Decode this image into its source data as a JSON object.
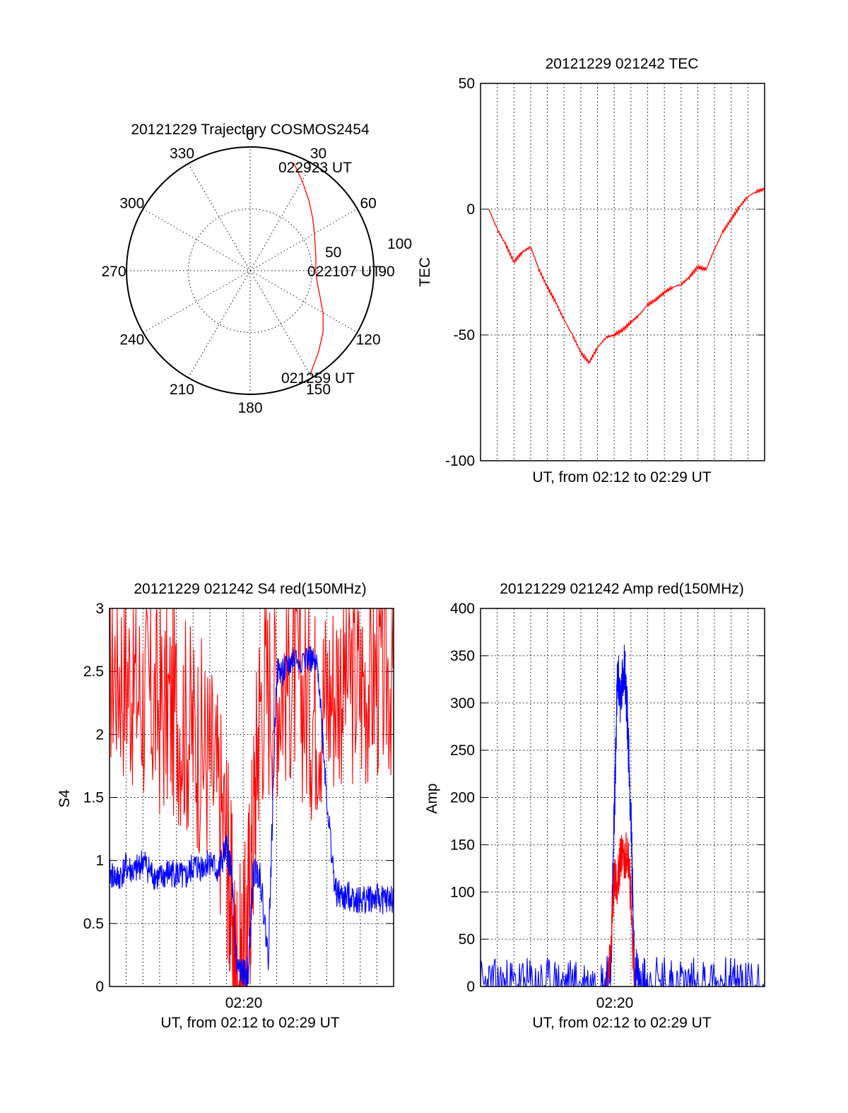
{
  "chart_data": [
    {
      "type": "polar",
      "title": "20121229 Trajectory COSMOS2454",
      "angle_labels": [
        "0",
        "30",
        "60",
        "90",
        "120",
        "150",
        "180",
        "210",
        "240",
        "270",
        "300",
        "330"
      ],
      "radius_labels": [
        "50",
        "100"
      ],
      "rlim": [
        0,
        100
      ],
      "start_label": "021259 UT",
      "mid_label": "022107 UT",
      "end_label": "022923 UT",
      "track": [
        {
          "az": 150.0,
          "r": 97
        },
        {
          "az": 140.0,
          "r": 86
        },
        {
          "az": 130.0,
          "r": 77
        },
        {
          "az": 120.0,
          "r": 68
        },
        {
          "az": 110.0,
          "r": 60
        },
        {
          "az": 100.0,
          "r": 55
        },
        {
          "az": 90.0,
          "r": 53
        },
        {
          "az": 80.0,
          "r": 54
        },
        {
          "az": 70.0,
          "r": 56
        },
        {
          "az": 60.0,
          "r": 60
        },
        {
          "az": 50.0,
          "r": 66
        },
        {
          "az": 40.0,
          "r": 74
        },
        {
          "az": 30.0,
          "r": 84
        },
        {
          "az": 22.0,
          "r": 94
        }
      ]
    },
    {
      "type": "line",
      "title": "20121229 021242 TEC",
      "xlabel": "UT, from 02:12 to 02:29 UT",
      "ylabel": "TEC",
      "xlim": [
        0,
        17
      ],
      "ylim": [
        -100,
        50
      ],
      "yticks": [
        "50",
        "0",
        "-50",
        "-100"
      ],
      "grid": true,
      "series": [
        {
          "color": "#ff0000",
          "x": [
            0.5,
            1,
            1.5,
            2,
            2.5,
            3,
            3.5,
            4,
            4.5,
            5,
            5.5,
            6,
            6.5,
            7,
            7.5,
            8,
            8.5,
            9,
            9.5,
            10,
            10.5,
            11,
            11.5,
            12,
            12.5,
            13,
            13.5,
            14,
            14.5,
            15,
            15.5,
            16,
            16.5,
            17
          ],
          "y": [
            0,
            -8,
            -14,
            -21,
            -17,
            -15,
            -24,
            -31,
            -37,
            -44,
            -50,
            -57,
            -61,
            -55,
            -51,
            -50,
            -48,
            -45,
            -42,
            -38,
            -36,
            -33,
            -31,
            -30,
            -27,
            -23,
            -24,
            -16,
            -9,
            -4,
            1,
            5,
            7,
            8
          ]
        }
      ]
    },
    {
      "type": "line",
      "title": "20121229 021242 S4 red(150MHz)",
      "xlabel": "UT, from 02:12 to 02:29 UT",
      "ylabel": "S4",
      "xtick_label": "02:20",
      "xlim": [
        0,
        17
      ],
      "ylim": [
        0,
        3
      ],
      "yticks": [
        "3",
        "2.5",
        "2",
        "1.5",
        "1",
        "0.5",
        "0"
      ],
      "grid": true,
      "series": [
        {
          "color": "#ff0000",
          "x": [
            0,
            1,
            2,
            3,
            4,
            5,
            6,
            7,
            7.5,
            8,
            8.5,
            9,
            10,
            11,
            12,
            13,
            14,
            15,
            16,
            17
          ],
          "y": [
            2.6,
            2.5,
            2.3,
            2.2,
            2.2,
            2.0,
            1.8,
            1.2,
            0.15,
            0.1,
            1.0,
            2.3,
            2.4,
            2.5,
            2.2,
            2.3,
            2.5,
            2.4,
            2.5,
            2.5
          ]
        },
        {
          "color": "#0000ff",
          "x": [
            0,
            0.5,
            1,
            1.5,
            2,
            2.5,
            3,
            3.5,
            4,
            4.5,
            5,
            5.5,
            6,
            6.5,
            7,
            7.3,
            7.6,
            8,
            8.3,
            8.6,
            9,
            9.5,
            10,
            10.5,
            11,
            12,
            12.5,
            13,
            13.5,
            14,
            14.5,
            15,
            15.5,
            16,
            16.5,
            17
          ],
          "y": [
            0.9,
            0.85,
            0.95,
            0.9,
            1.0,
            0.9,
            0.85,
            0.9,
            0.9,
            0.85,
            0.95,
            0.95,
            1.0,
            0.9,
            1.1,
            0.9,
            0.15,
            0.1,
            0.12,
            0.9,
            0.9,
            0.22,
            2.5,
            2.5,
            2.6,
            2.6,
            2.5,
            1.5,
            0.75,
            0.7,
            0.72,
            0.68,
            0.7,
            0.7,
            0.68,
            0.7
          ]
        }
      ]
    },
    {
      "type": "line",
      "title": "20121229 021242 Amp red(150MHz)",
      "xlabel": "UT, from 02:12 to 02:29 UT",
      "ylabel": "Amp",
      "xtick_label": "02:20",
      "xlim": [
        0,
        17
      ],
      "ylim": [
        0,
        400
      ],
      "yticks": [
        "400",
        "350",
        "300",
        "250",
        "200",
        "150",
        "100",
        "50",
        "0"
      ],
      "grid": true,
      "series": [
        {
          "color": "#0000ff",
          "x": [
            0,
            1,
            2,
            3,
            4,
            5,
            6,
            7,
            7.5,
            7.8,
            8.0,
            8.2,
            8.4,
            8.6,
            8.8,
            9.0,
            9.2,
            9.5,
            10,
            11,
            12,
            13,
            14,
            15,
            16,
            17
          ],
          "y": [
            1,
            1,
            1,
            1,
            1,
            1,
            1,
            1,
            1,
            20,
            180,
            330,
            300,
            345,
            280,
            180,
            20,
            2,
            3,
            3,
            2,
            2,
            2,
            2,
            2,
            2
          ]
        },
        {
          "color": "#ff0000",
          "x": [
            7.6,
            7.8,
            8.0,
            8.2,
            8.4,
            8.6,
            8.8,
            9.0,
            9.2
          ],
          "y": [
            5,
            40,
            120,
            110,
            140,
            130,
            150,
            90,
            5
          ]
        }
      ]
    }
  ]
}
